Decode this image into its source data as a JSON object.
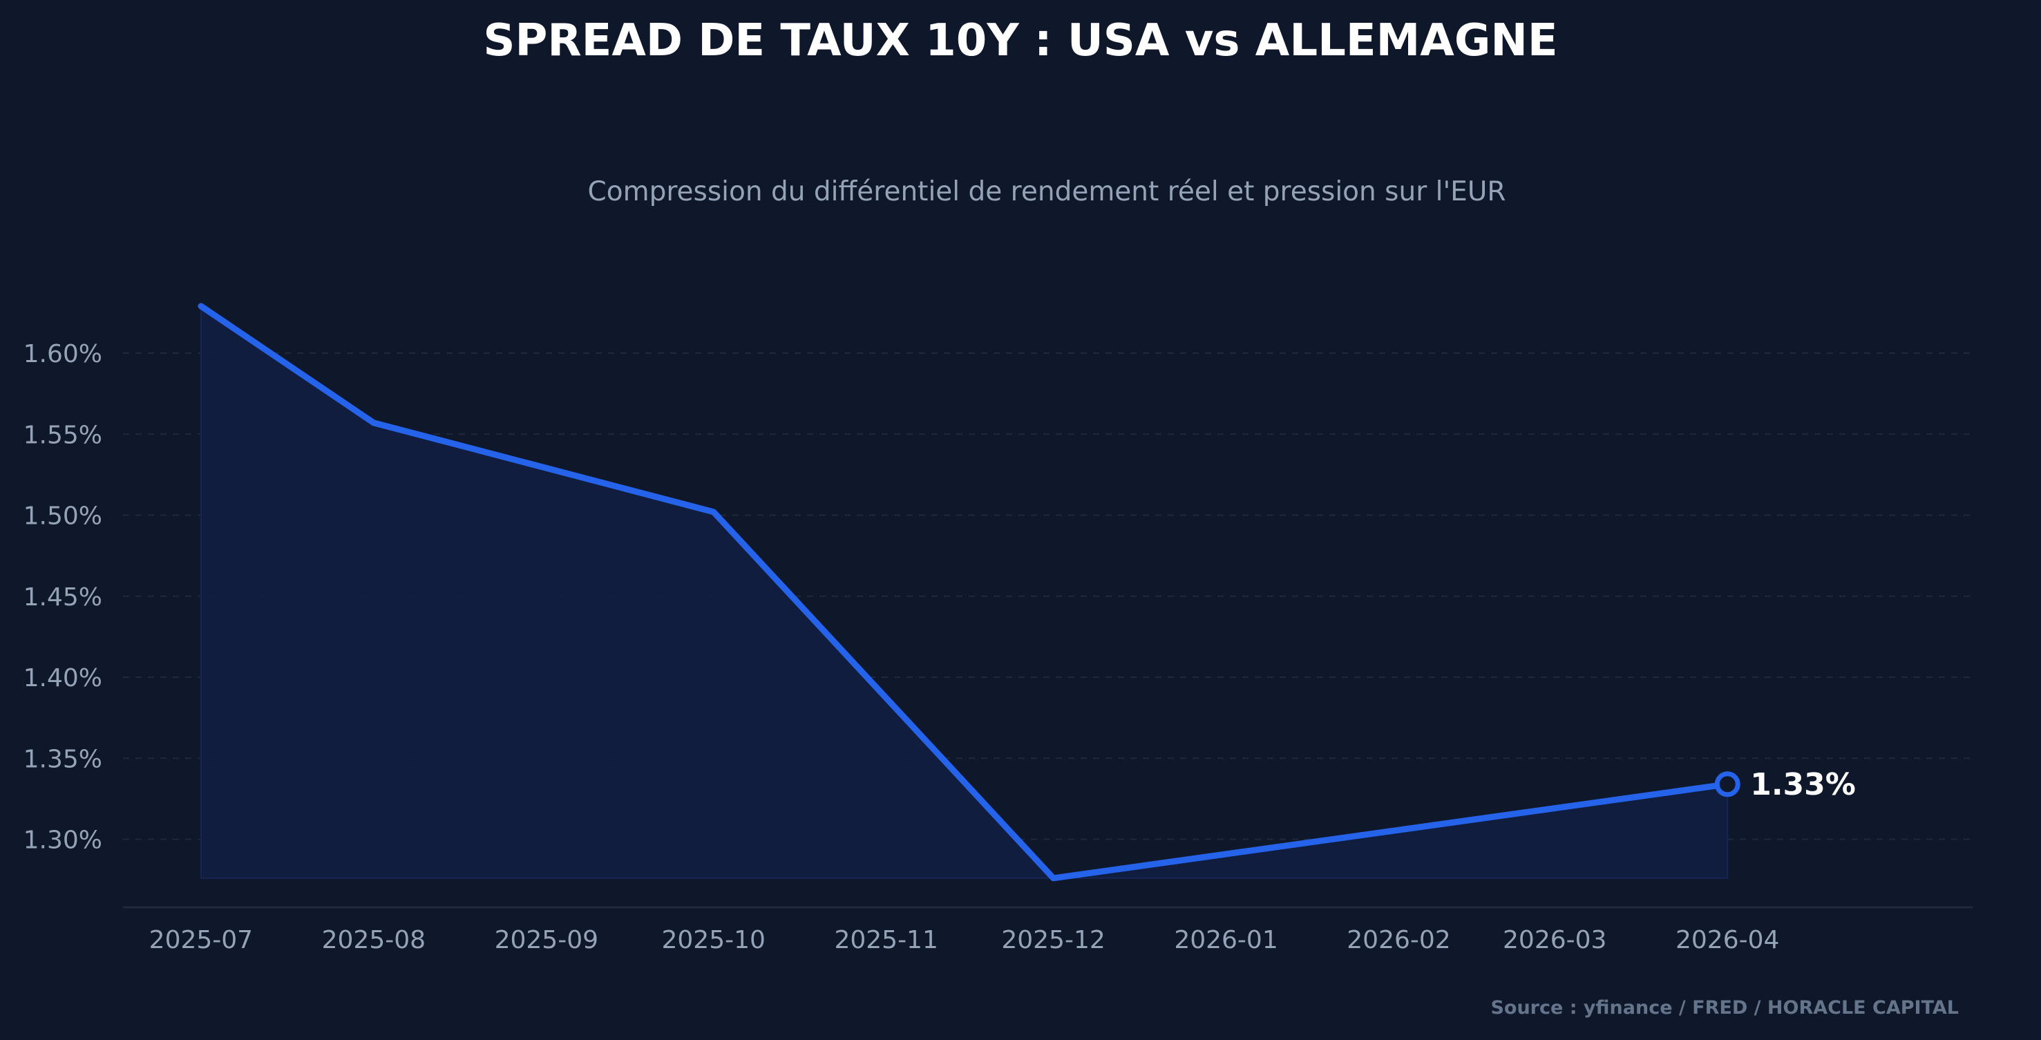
{
  "chart_data": {
    "type": "area",
    "title": "SPREAD DE TAUX 10Y : USA vs ALLEMAGNE",
    "subtitle": "Compression du différentiel de rendement réel et pression sur l'EUR",
    "xlabel": "",
    "ylabel": "",
    "x_ticks": [
      "2025-07",
      "2025-08",
      "2025-09",
      "2025-10",
      "2025-11",
      "2025-12",
      "2026-01",
      "2026-02",
      "2026-03",
      "2026-04"
    ],
    "y_ticks": [
      "1.30%",
      "1.35%",
      "1.40%",
      "1.45%",
      "1.50%",
      "1.55%",
      "1.60%"
    ],
    "y_tick_values": [
      1.3,
      1.35,
      1.4,
      1.45,
      1.5,
      1.55,
      1.6
    ],
    "ylim": [
      1.258,
      1.658
    ],
    "xlim": [
      "2025-06-17",
      "2026-05-15"
    ],
    "grid": true,
    "series": [
      {
        "x": [
          "2025-07-01",
          "2025-08-01",
          "2025-10-01",
          "2025-12-01",
          "2026-04-01"
        ],
        "values": [
          1.629,
          1.557,
          1.502,
          1.276,
          1.334
        ]
      }
    ],
    "last_value_label": "1.33%",
    "source": "Source : yfinance / FRED / HORACLE CAPITAL",
    "colors": {
      "background": "#0f172a",
      "line": "#2563eb",
      "fill": "#111d3f",
      "grid": "#1e293b",
      "tick_text": "#94a3b8",
      "title": "#ffffff",
      "subtitle": "#94a3b8",
      "source": "#64748b",
      "axis": "#1e293b"
    }
  }
}
